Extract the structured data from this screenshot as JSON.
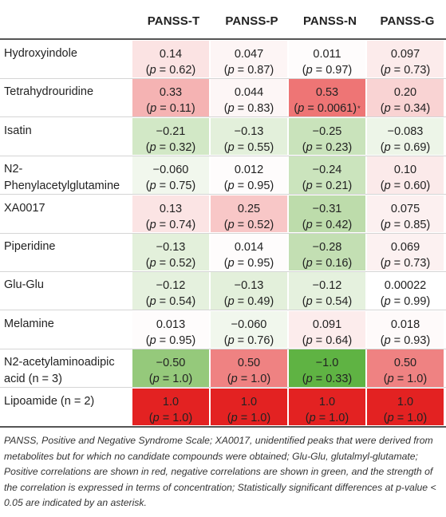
{
  "headers": [
    "PANSS-T",
    "PANSS-P",
    "PANSS-N",
    "PANSS-G"
  ],
  "rows": [
    {
      "label": "Hydroxyindole",
      "cells": [
        {
          "r": "0.14",
          "p": "0.62",
          "star": "",
          "color": "#fbe3e3"
        },
        {
          "r": "0.047",
          "p": "0.87",
          "star": "",
          "color": "#fdf5f5"
        },
        {
          "r": "0.011",
          "p": "0.97",
          "star": "",
          "color": "#fefcfc"
        },
        {
          "r": "0.097",
          "p": "0.73",
          "star": "",
          "color": "#fcebeb"
        }
      ]
    },
    {
      "label": "Tetrahydrouridine",
      "cells": [
        {
          "r": "0.33",
          "p": "0.11",
          "star": "",
          "color": "#f5b3b3"
        },
        {
          "r": "0.044",
          "p": "0.83",
          "star": "",
          "color": "#fdf6f6"
        },
        {
          "r": "0.53",
          "p": "0.0061",
          "star": "*",
          "color": "#ee7575"
        },
        {
          "r": "0.20",
          "p": "0.34",
          "star": "",
          "color": "#f9d3d3"
        }
      ]
    },
    {
      "label": "Isatin",
      "cells": [
        {
          "r": "−0.21",
          "p": "0.32",
          "star": "",
          "color": "#d2e8c6"
        },
        {
          "r": "−0.13",
          "p": "0.55",
          "star": "",
          "color": "#e3f0db"
        },
        {
          "r": "−0.25",
          "p": "0.23",
          "star": "",
          "color": "#c9e3bb"
        },
        {
          "r": "−0.083",
          "p": "0.69",
          "star": "",
          "color": "#edf5e8"
        }
      ]
    },
    {
      "label": "N2-\nPhenylacetylglutamine",
      "cells": [
        {
          "r": "−0.060",
          "p": "0.75",
          "star": "",
          "color": "#f1f7ed"
        },
        {
          "r": "0.012",
          "p": "0.95",
          "star": "",
          "color": "#fefcfc"
        },
        {
          "r": "−0.24",
          "p": "0.21",
          "star": "",
          "color": "#cbe4bd"
        },
        {
          "r": "0.10",
          "p": "0.60",
          "star": "",
          "color": "#fbeaea"
        }
      ]
    },
    {
      "label": "XA0017",
      "cells": [
        {
          "r": "0.13",
          "p": "0.74",
          "star": "",
          "color": "#fbe4e4"
        },
        {
          "r": "0.25",
          "p": "0.52",
          "star": "",
          "color": "#f8c7c7"
        },
        {
          "r": "−0.31",
          "p": "0.42",
          "star": "",
          "color": "#bddcab"
        },
        {
          "r": "0.075",
          "p": "0.85",
          "star": "",
          "color": "#fcf0f0"
        }
      ]
    },
    {
      "label": "Piperidine",
      "cells": [
        {
          "r": "−0.13",
          "p": "0.52",
          "star": "",
          "color": "#e3f0db"
        },
        {
          "r": "0.014",
          "p": "0.95",
          "star": "",
          "color": "#fefcfc"
        },
        {
          "r": "−0.28",
          "p": "0.16",
          "star": "",
          "color": "#c3dfb3"
        },
        {
          "r": "0.069",
          "p": "0.73",
          "star": "",
          "color": "#fcf1f1"
        }
      ]
    },
    {
      "label": "Glu-Glu",
      "cells": [
        {
          "r": "−0.12",
          "p": "0.54",
          "star": "",
          "color": "#e5f1de"
        },
        {
          "r": "−0.13",
          "p": "0.49",
          "star": "",
          "color": "#e3f0db"
        },
        {
          "r": "−0.12",
          "p": "0.54",
          "star": "",
          "color": "#e5f1de"
        },
        {
          "r": "0.00022",
          "p": "0.99",
          "star": "",
          "color": "#ffffff"
        }
      ]
    },
    {
      "label": "Melamine",
      "cells": [
        {
          "r": "0.013",
          "p": "0.95",
          "star": "",
          "color": "#fefcfc"
        },
        {
          "r": "−0.060",
          "p": "0.76",
          "star": "",
          "color": "#f1f7ed"
        },
        {
          "r": "0.091",
          "p": "0.64",
          "star": "",
          "color": "#fcecec"
        },
        {
          "r": "0.018",
          "p": "0.93",
          "star": "",
          "color": "#fefafa"
        }
      ]
    },
    {
      "label": "N2-acetylaminoadipic\nacid (n = 3)",
      "cells": [
        {
          "r": "−0.50",
          "p": "1.0",
          "star": "",
          "color": "#95c97b"
        },
        {
          "r": "0.50",
          "p": "1.0",
          "star": "",
          "color": "#ef8282"
        },
        {
          "r": "−1.0",
          "p": "0.33",
          "star": "",
          "color": "#5fb343"
        },
        {
          "r": "0.50",
          "p": "1.0",
          "star": "",
          "color": "#ef8282"
        }
      ]
    },
    {
      "label": "Lipoamide (n = 2)",
      "cells": [
        {
          "r": "1.0",
          "p": "1.0",
          "star": "",
          "color": "#e32222"
        },
        {
          "r": "1.0",
          "p": "1.0",
          "star": "",
          "color": "#e32222"
        },
        {
          "r": "1.0",
          "p": "1.0",
          "star": "",
          "color": "#e32222"
        },
        {
          "r": "1.0",
          "p": "1.0",
          "star": "",
          "color": "#e32222"
        }
      ]
    }
  ],
  "footnote": "PANSS, Positive and Negative Syndrome Scale; XA0017, unidentified peaks that were derived from metabolites but for which no candidate compounds were obtained; Glu-Glu, glutalmyl-glutamate; Positive correlations are shown in red, negative correlations are shown in green, and the strength of the correlation is expressed in terms of concentration; Statistically significant differences at p-value < 0.05 are indicated by an asterisk."
}
